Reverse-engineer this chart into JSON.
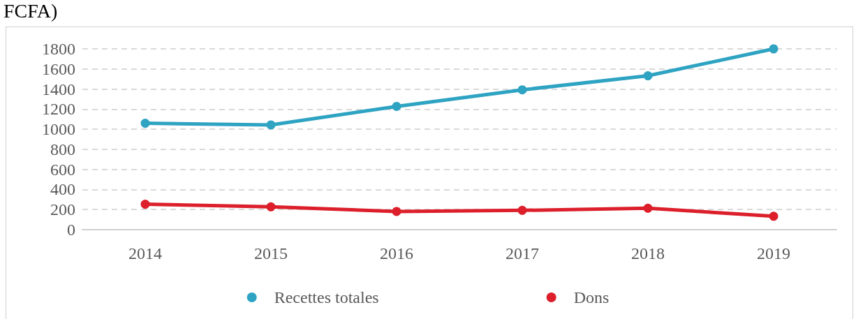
{
  "chart_data": {
    "type": "line",
    "title": "FCFA)",
    "categories": [
      "2014",
      "2015",
      "2016",
      "2017",
      "2018",
      "2019"
    ],
    "series": [
      {
        "name": "Recettes totales",
        "color": "#2ea3c2",
        "values": [
          1059,
          1043,
          1227,
          1392,
          1532,
          1800
        ]
      },
      {
        "name": "Dons",
        "color": "#dc1f2a",
        "values": [
          253,
          227,
          181,
          192,
          213,
          133
        ]
      }
    ],
    "ylim": [
      0,
      1800
    ],
    "yticks": [
      0,
      200,
      400,
      600,
      800,
      1000,
      1200,
      1400,
      1600,
      1800
    ],
    "grid": "y",
    "legend": "bottom",
    "marker": "circle",
    "line_style": "solid"
  }
}
